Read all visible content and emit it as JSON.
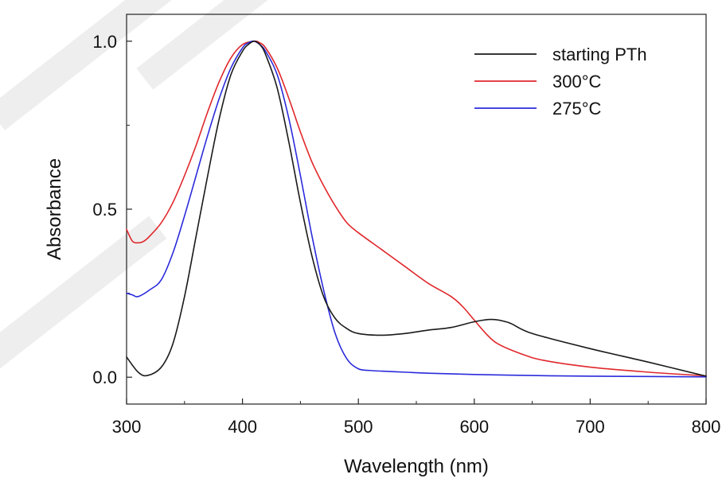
{
  "chart_data": {
    "type": "line",
    "xlabel": "Wavelength (nm)",
    "ylabel": "Absorbance",
    "xlim": [
      300,
      800
    ],
    "ylim": [
      -0.08,
      1.08
    ],
    "x_ticks": [
      300,
      400,
      500,
      600,
      700,
      800
    ],
    "x_tick_labels": [
      "300",
      "400",
      "500",
      "600",
      "700",
      "800"
    ],
    "y_ticks": [
      0.0,
      0.5,
      1.0
    ],
    "y_tick_labels": [
      "0.0",
      "0.5",
      "1.0"
    ],
    "grid": false,
    "legend_position": "top-right",
    "series": [
      {
        "name": "starting PTh",
        "color": "#1a1a1a",
        "x": [
          300,
          310,
          318,
          330,
          340,
          350,
          360,
          370,
          380,
          390,
          400,
          405,
          410,
          415,
          420,
          430,
          440,
          450,
          460,
          470,
          480,
          490,
          500,
          520,
          540,
          560,
          580,
          600,
          615,
          630,
          650,
          700,
          750,
          800
        ],
        "y": [
          0.06,
          0.015,
          0.005,
          0.03,
          0.1,
          0.24,
          0.42,
          0.6,
          0.77,
          0.9,
          0.97,
          0.99,
          1.0,
          0.99,
          0.96,
          0.86,
          0.7,
          0.52,
          0.36,
          0.24,
          0.175,
          0.145,
          0.13,
          0.125,
          0.13,
          0.14,
          0.148,
          0.165,
          0.172,
          0.162,
          0.13,
          0.085,
          0.045,
          0.003
        ]
      },
      {
        "name": "300°C",
        "color": "#e0272b",
        "x": [
          300,
          305,
          310,
          315,
          320,
          330,
          340,
          350,
          360,
          370,
          380,
          390,
          400,
          410,
          415,
          420,
          430,
          440,
          450,
          460,
          470,
          480,
          490,
          500,
          520,
          540,
          560,
          580,
          590,
          600,
          610,
          620,
          640,
          660,
          700,
          750,
          800
        ],
        "y": [
          0.44,
          0.405,
          0.4,
          0.405,
          0.42,
          0.46,
          0.52,
          0.6,
          0.69,
          0.79,
          0.88,
          0.95,
          0.99,
          1.0,
          0.995,
          0.98,
          0.92,
          0.83,
          0.73,
          0.64,
          0.57,
          0.51,
          0.46,
          0.43,
          0.38,
          0.33,
          0.28,
          0.24,
          0.21,
          0.17,
          0.13,
          0.1,
          0.07,
          0.05,
          0.03,
          0.015,
          0.004
        ]
      },
      {
        "name": "275°C",
        "color": "#2b2bdc",
        "x": [
          300,
          305,
          310,
          320,
          330,
          340,
          350,
          360,
          370,
          380,
          390,
          400,
          405,
          410,
          415,
          420,
          430,
          440,
          450,
          460,
          470,
          480,
          490,
          500,
          510,
          520,
          540,
          560,
          600,
          650,
          700,
          800
        ],
        "y": [
          0.25,
          0.245,
          0.24,
          0.26,
          0.29,
          0.37,
          0.48,
          0.6,
          0.72,
          0.83,
          0.92,
          0.98,
          0.995,
          1.0,
          0.99,
          0.97,
          0.9,
          0.77,
          0.6,
          0.42,
          0.26,
          0.13,
          0.055,
          0.025,
          0.02,
          0.018,
          0.015,
          0.012,
          0.008,
          0.005,
          0.003,
          0.001
        ]
      }
    ]
  }
}
